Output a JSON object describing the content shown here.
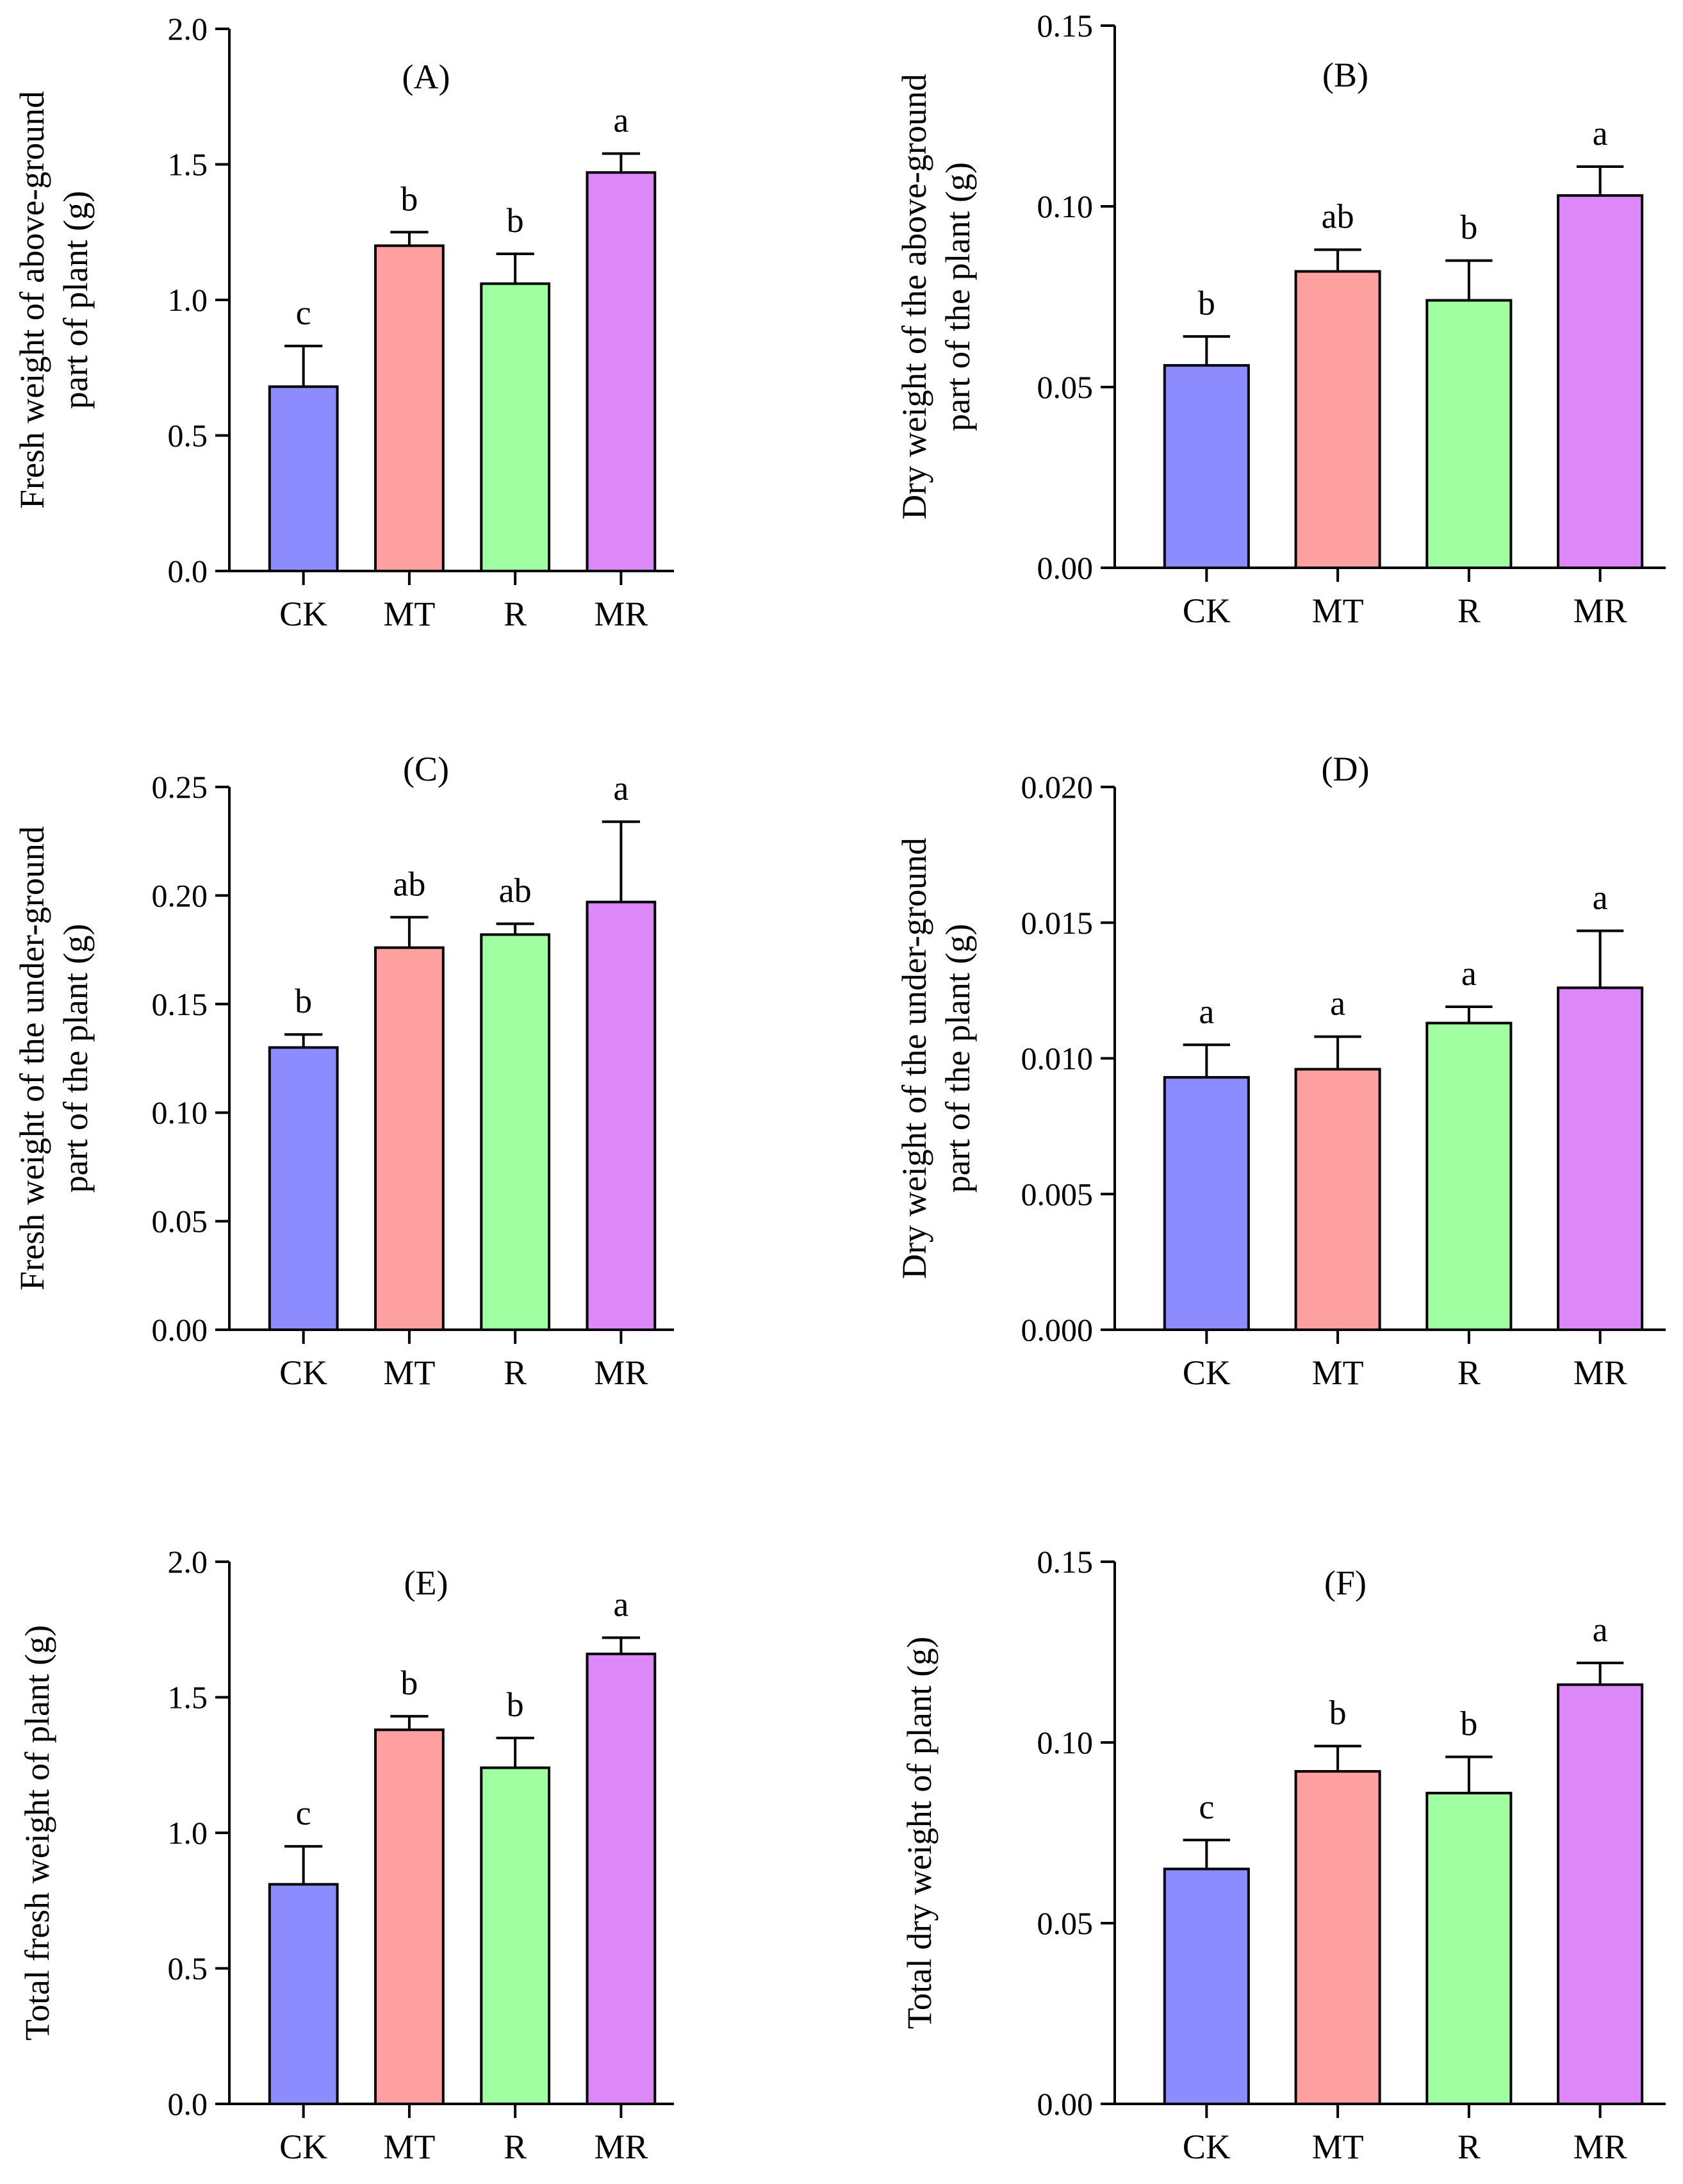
{
  "colors": {
    "CK": "#8c8cff",
    "MT": "#ffa0a0",
    "R": "#a0ffa0",
    "MR": "#dd88f8",
    "axis": "#000000"
  },
  "chart_data": [
    {
      "type": "bar",
      "panel": "A",
      "title": "(A)",
      "ylabel": [
        "Fresh weight of above-ground",
        "part of plant (g)"
      ],
      "xlabel": "",
      "categories": [
        "CK",
        "MT",
        "R",
        "MR"
      ],
      "values": [
        0.68,
        1.2,
        1.06,
        1.47
      ],
      "errors": [
        0.15,
        0.05,
        0.11,
        0.07
      ],
      "significance": [
        "c",
        "b",
        "b",
        "a"
      ],
      "ylim": [
        0,
        2.0
      ],
      "yticks": [
        0.0,
        0.5,
        1.0,
        1.5,
        2.0
      ],
      "ytick_labels": [
        "0.0",
        "0.5",
        "1.0",
        "1.5",
        "2.0"
      ]
    },
    {
      "type": "bar",
      "panel": "B",
      "title": "(B)",
      "ylabel": [
        "Dry weight of the above-ground",
        "part of the plant (g)"
      ],
      "xlabel": "",
      "categories": [
        "CK",
        "MT",
        "R",
        "MR"
      ],
      "values": [
        0.056,
        0.082,
        0.074,
        0.103
      ],
      "errors": [
        0.008,
        0.006,
        0.011,
        0.008
      ],
      "significance": [
        "b",
        "ab",
        "b",
        "a"
      ],
      "ylim": [
        0,
        0.15
      ],
      "yticks": [
        0.0,
        0.05,
        0.1,
        0.15
      ],
      "ytick_labels": [
        "0.00",
        "0.05",
        "0.10",
        "0.15"
      ]
    },
    {
      "type": "bar",
      "panel": "C",
      "title": "(C)",
      "ylabel": [
        "Fresh weight of the under-ground",
        "part of the plant (g)"
      ],
      "xlabel": "",
      "categories": [
        "CK",
        "MT",
        "R",
        "MR"
      ],
      "values": [
        0.13,
        0.176,
        0.182,
        0.197
      ],
      "errors": [
        0.006,
        0.014,
        0.005,
        0.037
      ],
      "significance": [
        "b",
        "ab",
        "ab",
        "a"
      ],
      "ylim": [
        0,
        0.25
      ],
      "yticks": [
        0.0,
        0.05,
        0.1,
        0.15,
        0.2,
        0.25
      ],
      "ytick_labels": [
        "0.00",
        "0.05",
        "0.10",
        "0.15",
        "0.20",
        "0.25"
      ]
    },
    {
      "type": "bar",
      "panel": "D",
      "title": "(D)",
      "ylabel": [
        "Dry weight of the under-ground",
        "part of the plant (g)"
      ],
      "xlabel": "",
      "categories": [
        "CK",
        "MT",
        "R",
        "MR"
      ],
      "values": [
        0.0093,
        0.0096,
        0.0113,
        0.0126
      ],
      "errors": [
        0.0012,
        0.0012,
        0.0006,
        0.0021
      ],
      "significance": [
        "a",
        "a",
        "a",
        "a"
      ],
      "ylim": [
        0,
        0.02
      ],
      "yticks": [
        0.0,
        0.005,
        0.01,
        0.015,
        0.02
      ],
      "ytick_labels": [
        "0.000",
        "0.005",
        "0.010",
        "0.015",
        "0.020"
      ]
    },
    {
      "type": "bar",
      "panel": "E",
      "title": "(E)",
      "ylabel": [
        "Total fresh weight of plant (g)"
      ],
      "xlabel": "",
      "categories": [
        "CK",
        "MT",
        "R",
        "MR"
      ],
      "values": [
        0.81,
        1.38,
        1.24,
        1.66
      ],
      "errors": [
        0.14,
        0.05,
        0.11,
        0.06
      ],
      "significance": [
        "c",
        "b",
        "b",
        "a"
      ],
      "ylim": [
        0,
        2.0
      ],
      "yticks": [
        0.0,
        0.5,
        1.0,
        1.5,
        2.0
      ],
      "ytick_labels": [
        "0.0",
        "0.5",
        "1.0",
        "1.5",
        "2.0"
      ]
    },
    {
      "type": "bar",
      "panel": "F",
      "title": "(F)",
      "ylabel": [
        "Total dry weight of plant (g)"
      ],
      "xlabel": "",
      "categories": [
        "CK",
        "MT",
        "R",
        "MR"
      ],
      "values": [
        0.065,
        0.092,
        0.086,
        0.116
      ],
      "errors": [
        0.008,
        0.007,
        0.01,
        0.006
      ],
      "significance": [
        "c",
        "b",
        "b",
        "a"
      ],
      "ylim": [
        0,
        0.15
      ],
      "yticks": [
        0.0,
        0.05,
        0.1,
        0.15
      ],
      "ytick_labels": [
        "0.00",
        "0.05",
        "0.10",
        "0.15"
      ]
    }
  ]
}
